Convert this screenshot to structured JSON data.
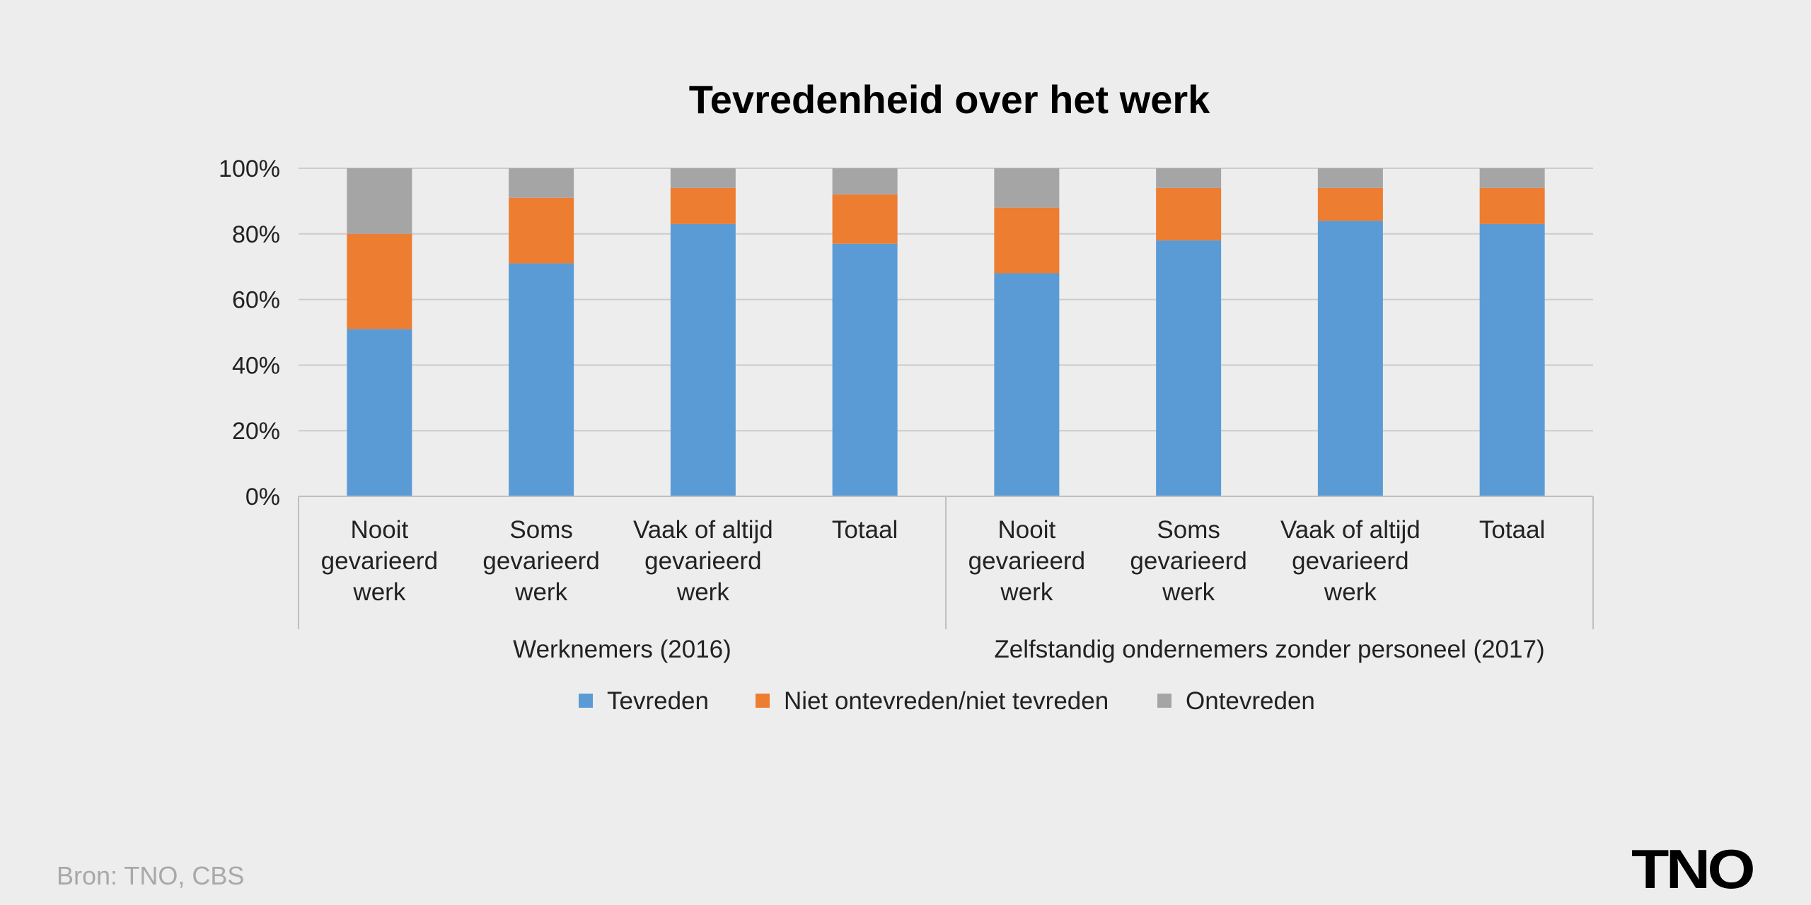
{
  "source_text": "Bron: TNO, CBS",
  "logo_text": "TNO",
  "colors": {
    "background": "#ededed",
    "tevreden": "#5b9bd5",
    "neutraal": "#ed7d31",
    "ontevreden": "#a5a5a5",
    "grid": "#cccccc",
    "axis": "#bfbfbf"
  },
  "chart_data": {
    "type": "bar",
    "stacked": true,
    "title": "Tevredenheid over het werk",
    "xlabel": "",
    "ylabel": "",
    "ylim": [
      0,
      100
    ],
    "yticks": [
      "0%",
      "20%",
      "40%",
      "60%",
      "80%",
      "100%"
    ],
    "grid": true,
    "legend_position": "bottom",
    "categories": [
      [
        "Nooit",
        "gevarieerd",
        "werk"
      ],
      [
        "Soms",
        "gevarieerd",
        "werk"
      ],
      [
        "Vaak of altijd",
        "gevarieerd",
        "werk"
      ],
      [
        "Totaal"
      ],
      [
        "Nooit",
        "gevarieerd",
        "werk"
      ],
      [
        "Soms",
        "gevarieerd",
        "werk"
      ],
      [
        "Vaak of altijd",
        "gevarieerd",
        "werk"
      ],
      [
        "Totaal"
      ]
    ],
    "groups": [
      {
        "label": "Werknemers (2016)",
        "start": 0,
        "end": 3
      },
      {
        "label": "Zelfstandig ondernemers zonder personeel (2017)",
        "start": 4,
        "end": 7
      }
    ],
    "series": [
      {
        "name": "Tevreden",
        "color": "#5b9bd5",
        "values": [
          51,
          71,
          83,
          77,
          68,
          78,
          84,
          83
        ]
      },
      {
        "name": "Niet ontevreden/niet tevreden",
        "color": "#ed7d31",
        "values": [
          29,
          20,
          11,
          15,
          20,
          16,
          10,
          11
        ]
      },
      {
        "name": "Ontevreden",
        "color": "#a5a5a5",
        "values": [
          20,
          9,
          6,
          8,
          12,
          6,
          6,
          6
        ]
      }
    ]
  }
}
